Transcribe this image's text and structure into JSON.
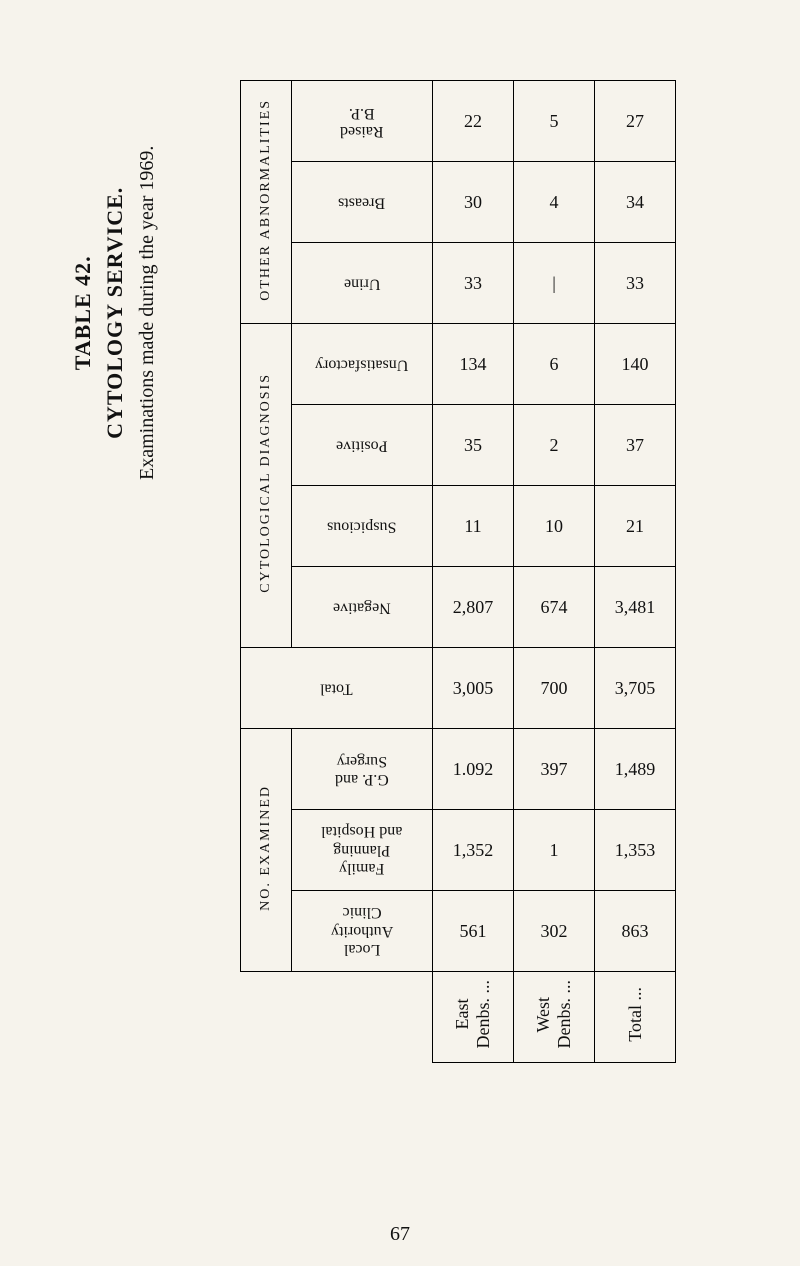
{
  "titles": {
    "table_no": "TABLE 42.",
    "service": "CYTOLOGY SERVICE.",
    "subtitle": "Examinations made during the year 1969."
  },
  "stubs": {
    "east": "East\nDenbs. ...",
    "west": "West\nDenbs. ...",
    "total": "Total ..."
  },
  "groups": {
    "other_abn": "OTHER ABNORMALITIES",
    "cyto_diag": "CYTOLOGICAL DIAGNOSIS",
    "no_exam": "NO. EXAMINED"
  },
  "rows": {
    "raised_bp": {
      "label": "Raised\nB.P.",
      "vals": [
        "22",
        "5",
        "27"
      ]
    },
    "breasts": {
      "label": "Breasts",
      "vals": [
        "30",
        "4",
        "34"
      ]
    },
    "urine": {
      "label": "Urine",
      "vals": [
        "33",
        "|",
        "33"
      ]
    },
    "unsatisfactory": {
      "label": "Unsatisfactory",
      "vals": [
        "134",
        "6",
        "140"
      ]
    },
    "positive": {
      "label": "Positive",
      "vals": [
        "35",
        "2",
        "37"
      ]
    },
    "suspicious": {
      "label": "Suspicious",
      "vals": [
        "11",
        "10",
        "21"
      ]
    },
    "negative": {
      "label": "Negative",
      "vals": [
        "2,807",
        "674",
        "3,481"
      ]
    },
    "total": {
      "label": "Total",
      "vals": [
        "3,005",
        "700",
        "3,705"
      ]
    },
    "gp_surgery": {
      "label": "G.P. and\nSurgery",
      "vals": [
        "1.092",
        "397",
        "1,489"
      ]
    },
    "fam_plan_hosp": {
      "label": "Family\nPlanning\nand Hospital",
      "vals": [
        "1,352",
        "1",
        "1,353"
      ]
    },
    "local_auth": {
      "label": "Local\nAuthority\nClinic",
      "vals": [
        "561",
        "302",
        "863"
      ]
    }
  },
  "page_number": "67",
  "style": {
    "bg": "#f6f3ec",
    "border": "#000000",
    "text": "#111111",
    "title_fontsize": 22,
    "subtitle_fontsize": 20,
    "cell_fontsize": 18,
    "head_fontsize": 16,
    "group_fontsize": 14
  }
}
